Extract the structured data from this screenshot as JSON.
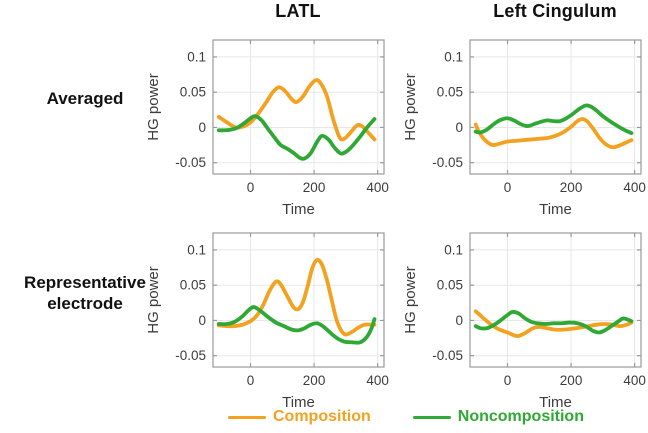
{
  "figure": {
    "col_titles": [
      "LATL",
      "Left Cingulum"
    ],
    "row_labels": [
      "Averaged",
      "Representative electrode"
    ]
  },
  "legend": {
    "items": [
      {
        "label": "Composition",
        "color": "#F2A220"
      },
      {
        "label": "Noncomposition",
        "color": "#2FA836"
      }
    ]
  },
  "style": {
    "frame_color": "#9A9A9A",
    "grid_color": "#E7E7E7",
    "tick_label_color": "#3C3C3C",
    "axis_label_color": "#3C3C3C"
  },
  "chart_data": [
    {
      "id": "averaged-latl",
      "row": "Averaged",
      "col": "LATL",
      "type": "line",
      "xlabel": "Time",
      "ylabel": "HG power",
      "xlim": [
        -118,
        420
      ],
      "ylim": [
        -0.066,
        0.124
      ],
      "xticks": [
        0,
        200,
        400
      ],
      "yticks": [
        -0.05,
        0,
        0.05,
        0.1
      ],
      "grid": true,
      "series": [
        {
          "name": "Composition",
          "color": "#F2A220",
          "points": [
            [
              -100,
              0.015
            ],
            [
              -80,
              0.009
            ],
            [
              -60,
              0.003
            ],
            [
              -45,
              0.0
            ],
            [
              -25,
              0.001
            ],
            [
              0,
              0.007
            ],
            [
              25,
              0.02
            ],
            [
              50,
              0.036
            ],
            [
              70,
              0.05
            ],
            [
              90,
              0.057
            ],
            [
              110,
              0.051
            ],
            [
              130,
              0.04
            ],
            [
              145,
              0.036
            ],
            [
              165,
              0.044
            ],
            [
              185,
              0.058
            ],
            [
              205,
              0.067
            ],
            [
              220,
              0.063
            ],
            [
              240,
              0.045
            ],
            [
              260,
              0.012
            ],
            [
              280,
              -0.014
            ],
            [
              295,
              -0.016
            ],
            [
              315,
              -0.007
            ],
            [
              335,
              0.003
            ],
            [
              350,
              0.002
            ],
            [
              370,
              -0.007
            ],
            [
              390,
              -0.017
            ]
          ]
        },
        {
          "name": "Noncomposition",
          "color": "#2FA836",
          "points": [
            [
              -100,
              -0.004
            ],
            [
              -80,
              -0.004
            ],
            [
              -60,
              -0.003
            ],
            [
              -40,
              0.0
            ],
            [
              -20,
              0.006
            ],
            [
              0,
              0.013
            ],
            [
              15,
              0.016
            ],
            [
              35,
              0.01
            ],
            [
              55,
              -0.002
            ],
            [
              75,
              -0.014
            ],
            [
              95,
              -0.025
            ],
            [
              115,
              -0.03
            ],
            [
              135,
              -0.036
            ],
            [
              155,
              -0.043
            ],
            [
              170,
              -0.044
            ],
            [
              190,
              -0.036
            ],
            [
              210,
              -0.02
            ],
            [
              225,
              -0.012
            ],
            [
              245,
              -0.017
            ],
            [
              265,
              -0.029
            ],
            [
              285,
              -0.037
            ],
            [
              305,
              -0.033
            ],
            [
              325,
              -0.024
            ],
            [
              345,
              -0.013
            ],
            [
              365,
              -0.001
            ],
            [
              390,
              0.012
            ]
          ]
        }
      ]
    },
    {
      "id": "averaged-left-cingulum",
      "row": "Averaged",
      "col": "Left Cingulum",
      "type": "line",
      "xlabel": "Time",
      "ylabel": "HG power",
      "xlim": [
        -118,
        420
      ],
      "ylim": [
        -0.066,
        0.124
      ],
      "xticks": [
        0,
        200,
        400
      ],
      "yticks": [
        -0.05,
        0,
        0.05,
        0.1
      ],
      "grid": true,
      "series": [
        {
          "name": "Composition",
          "color": "#F2A220",
          "points": [
            [
              -100,
              0.004
            ],
            [
              -90,
              -0.006
            ],
            [
              -75,
              -0.016
            ],
            [
              -60,
              -0.022
            ],
            [
              -45,
              -0.025
            ],
            [
              -25,
              -0.023
            ],
            [
              0,
              -0.02
            ],
            [
              25,
              -0.019
            ],
            [
              50,
              -0.018
            ],
            [
              75,
              -0.017
            ],
            [
              100,
              -0.016
            ],
            [
              125,
              -0.015
            ],
            [
              150,
              -0.012
            ],
            [
              175,
              -0.007
            ],
            [
              200,
              0.001
            ],
            [
              220,
              0.009
            ],
            [
              235,
              0.012
            ],
            [
              250,
              0.009
            ],
            [
              270,
              -0.002
            ],
            [
              290,
              -0.015
            ],
            [
              310,
              -0.024
            ],
            [
              330,
              -0.028
            ],
            [
              350,
              -0.026
            ],
            [
              370,
              -0.022
            ],
            [
              390,
              -0.018
            ]
          ]
        },
        {
          "name": "Noncomposition",
          "color": "#2FA836",
          "points": [
            [
              -100,
              -0.006
            ],
            [
              -85,
              -0.007
            ],
            [
              -65,
              -0.003
            ],
            [
              -45,
              0.004
            ],
            [
              -25,
              0.01
            ],
            [
              0,
              0.013
            ],
            [
              20,
              0.01
            ],
            [
              45,
              0.004
            ],
            [
              65,
              0.002
            ],
            [
              85,
              0.005
            ],
            [
              105,
              0.008
            ],
            [
              125,
              0.01
            ],
            [
              145,
              0.009
            ],
            [
              165,
              0.009
            ],
            [
              185,
              0.013
            ],
            [
              205,
              0.019
            ],
            [
              225,
              0.026
            ],
            [
              245,
              0.031
            ],
            [
              260,
              0.03
            ],
            [
              280,
              0.024
            ],
            [
              300,
              0.016
            ],
            [
              325,
              0.008
            ],
            [
              350,
              0.001
            ],
            [
              370,
              -0.004
            ],
            [
              390,
              -0.008
            ]
          ]
        }
      ]
    },
    {
      "id": "representative-latl",
      "row": "Representative electrode",
      "col": "LATL",
      "type": "line",
      "xlabel": "Time",
      "ylabel": "HG power",
      "xlim": [
        -118,
        420
      ],
      "ylim": [
        -0.066,
        0.124
      ],
      "xticks": [
        0,
        200,
        400
      ],
      "yticks": [
        -0.05,
        0,
        0.05,
        0.1
      ],
      "grid": true,
      "series": [
        {
          "name": "Composition",
          "color": "#F2A220",
          "points": [
            [
              -100,
              -0.007
            ],
            [
              -75,
              -0.008
            ],
            [
              -50,
              -0.008
            ],
            [
              -25,
              -0.006
            ],
            [
              0,
              -0.001
            ],
            [
              20,
              0.007
            ],
            [
              40,
              0.022
            ],
            [
              60,
              0.042
            ],
            [
              80,
              0.055
            ],
            [
              95,
              0.051
            ],
            [
              115,
              0.035
            ],
            [
              135,
              0.019
            ],
            [
              150,
              0.016
            ],
            [
              165,
              0.026
            ],
            [
              180,
              0.049
            ],
            [
              195,
              0.075
            ],
            [
              210,
              0.086
            ],
            [
              225,
              0.079
            ],
            [
              240,
              0.058
            ],
            [
              255,
              0.03
            ],
            [
              270,
              0.002
            ],
            [
              285,
              -0.014
            ],
            [
              300,
              -0.02
            ],
            [
              320,
              -0.016
            ],
            [
              340,
              -0.01
            ],
            [
              360,
              -0.006
            ],
            [
              390,
              -0.006
            ]
          ]
        },
        {
          "name": "Noncomposition",
          "color": "#2FA836",
          "points": [
            [
              -100,
              -0.005
            ],
            [
              -75,
              -0.005
            ],
            [
              -50,
              -0.002
            ],
            [
              -25,
              0.006
            ],
            [
              -5,
              0.015
            ],
            [
              10,
              0.019
            ],
            [
              30,
              0.014
            ],
            [
              55,
              0.005
            ],
            [
              80,
              -0.003
            ],
            [
              105,
              -0.008
            ],
            [
              130,
              -0.013
            ],
            [
              150,
              -0.014
            ],
            [
              170,
              -0.011
            ],
            [
              190,
              -0.006
            ],
            [
              210,
              -0.004
            ],
            [
              230,
              -0.009
            ],
            [
              255,
              -0.019
            ],
            [
              275,
              -0.026
            ],
            [
              295,
              -0.03
            ],
            [
              320,
              -0.031
            ],
            [
              345,
              -0.031
            ],
            [
              365,
              -0.024
            ],
            [
              380,
              -0.012
            ],
            [
              390,
              0.002
            ]
          ]
        }
      ]
    },
    {
      "id": "representative-left-cingulum",
      "row": "Representative electrode",
      "col": "Left Cingulum",
      "type": "line",
      "xlabel": "Time",
      "ylabel": "HG power",
      "xlim": [
        -118,
        420
      ],
      "ylim": [
        -0.066,
        0.124
      ],
      "xticks": [
        0,
        200,
        400
      ],
      "yticks": [
        -0.05,
        0,
        0.05,
        0.1
      ],
      "grid": true,
      "series": [
        {
          "name": "Composition",
          "color": "#F2A220",
          "points": [
            [
              -100,
              0.013
            ],
            [
              -85,
              0.007
            ],
            [
              -65,
              -0.001
            ],
            [
              -45,
              -0.008
            ],
            [
              -25,
              -0.013
            ],
            [
              0,
              -0.017
            ],
            [
              20,
              -0.021
            ],
            [
              35,
              -0.022
            ],
            [
              55,
              -0.018
            ],
            [
              80,
              -0.011
            ],
            [
              100,
              -0.009
            ],
            [
              125,
              -0.011
            ],
            [
              150,
              -0.013
            ],
            [
              175,
              -0.013
            ],
            [
              200,
              -0.012
            ],
            [
              230,
              -0.01
            ],
            [
              255,
              -0.008
            ],
            [
              280,
              -0.006
            ],
            [
              305,
              -0.005
            ],
            [
              330,
              -0.006
            ],
            [
              355,
              -0.008
            ],
            [
              375,
              -0.006
            ],
            [
              390,
              -0.003
            ]
          ]
        },
        {
          "name": "Noncomposition",
          "color": "#2FA836",
          "points": [
            [
              -100,
              -0.008
            ],
            [
              -85,
              -0.011
            ],
            [
              -65,
              -0.011
            ],
            [
              -45,
              -0.007
            ],
            [
              -25,
              -0.001
            ],
            [
              -5,
              0.006
            ],
            [
              15,
              0.012
            ],
            [
              35,
              0.01
            ],
            [
              55,
              0.003
            ],
            [
              75,
              -0.002
            ],
            [
              95,
              -0.004
            ],
            [
              120,
              -0.005
            ],
            [
              145,
              -0.004
            ],
            [
              170,
              -0.004
            ],
            [
              195,
              -0.003
            ],
            [
              220,
              -0.004
            ],
            [
              245,
              -0.008
            ],
            [
              270,
              -0.015
            ],
            [
              290,
              -0.017
            ],
            [
              310,
              -0.013
            ],
            [
              330,
              -0.007
            ],
            [
              350,
              -0.001
            ],
            [
              365,
              0.003
            ],
            [
              390,
              -0.001
            ]
          ]
        }
      ]
    }
  ]
}
